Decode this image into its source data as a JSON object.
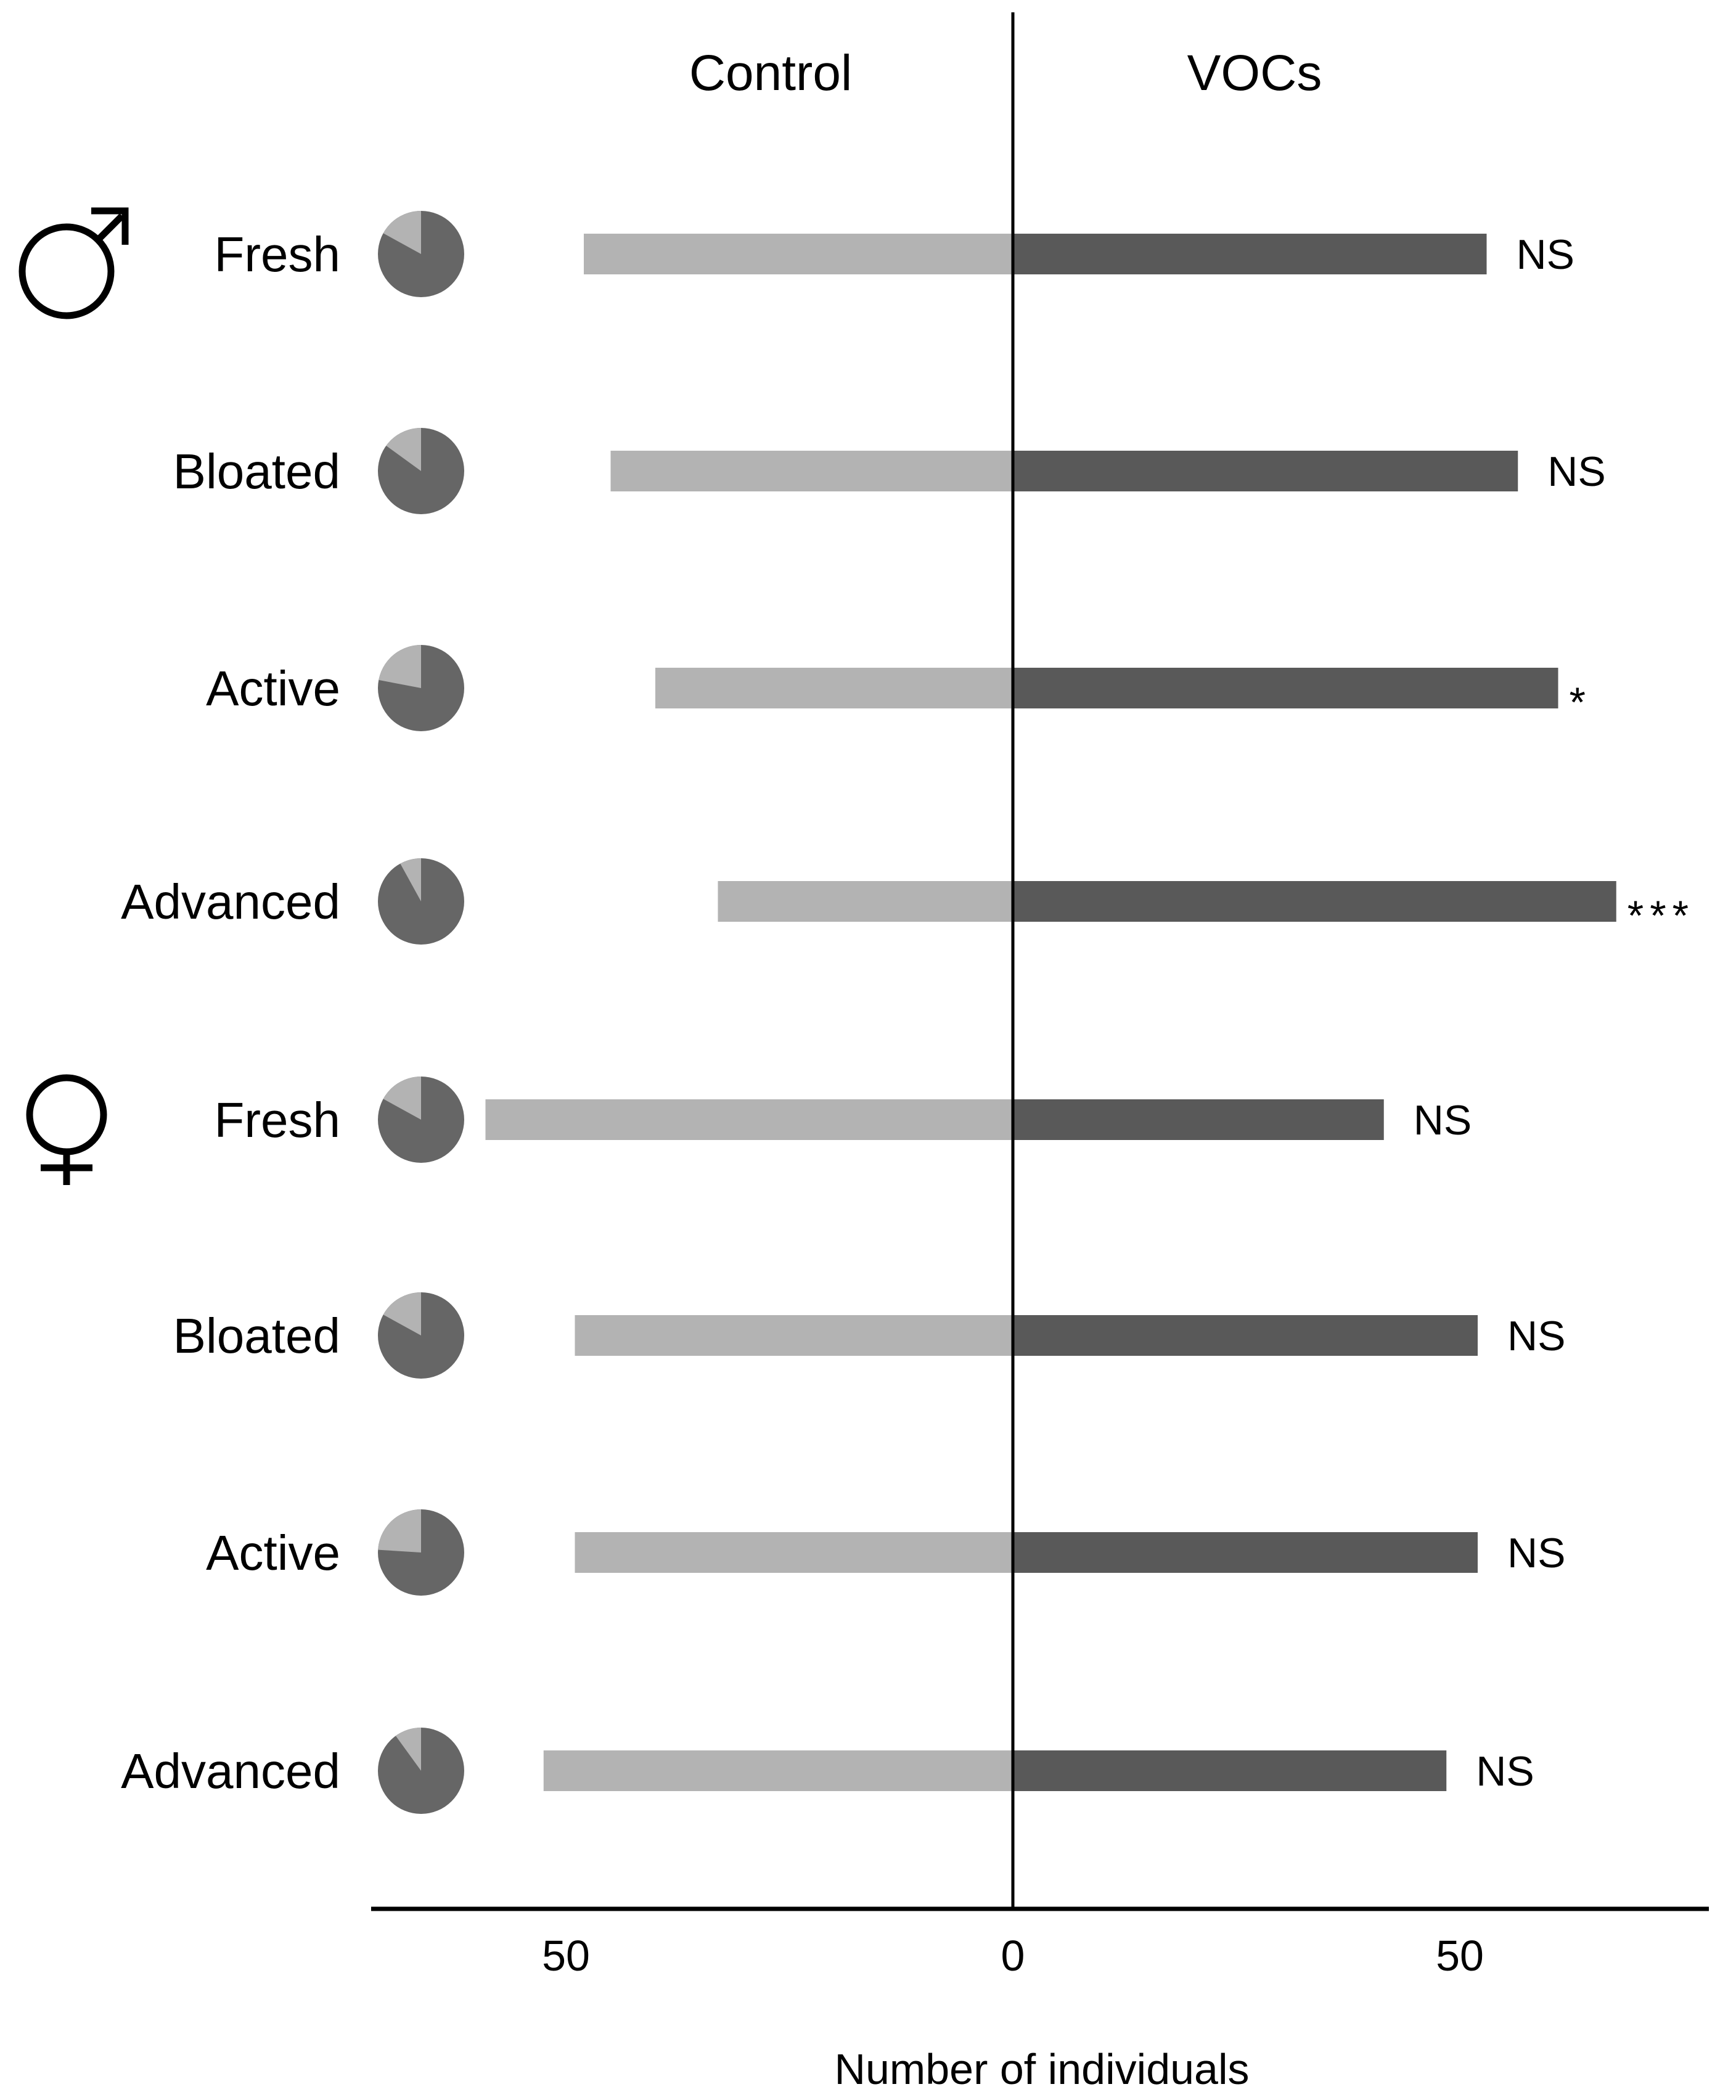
{
  "chart_data": {
    "type": "bar",
    "orientation": "horizontal-diverging",
    "column_headers": [
      "Control",
      "VOCs"
    ],
    "xlabel": "Number of individuals",
    "tick_labels": [
      "50",
      "0",
      "50"
    ],
    "tick_values": [
      -50,
      0,
      50
    ],
    "xlim": [
      -72,
      78
    ],
    "groups": [
      {
        "symbol": "♂",
        "rows": [
          {
            "label": "Fresh",
            "control": 48,
            "vocs": 53,
            "pie_control_fraction": 0.17,
            "significance": "NS"
          },
          {
            "label": "Bloated",
            "control": 45,
            "vocs": 56.5,
            "pie_control_fraction": 0.15,
            "significance": "NS"
          },
          {
            "label": "Active",
            "control": 40,
            "vocs": 61,
            "pie_control_fraction": 0.22,
            "significance": "*"
          },
          {
            "label": "Advanced",
            "control": 33,
            "vocs": 67.5,
            "pie_control_fraction": 0.08,
            "significance": "***"
          }
        ]
      },
      {
        "symbol": "♀",
        "rows": [
          {
            "label": "Fresh",
            "control": 59,
            "vocs": 41.5,
            "pie_control_fraction": 0.17,
            "significance": "NS"
          },
          {
            "label": "Bloated",
            "control": 49,
            "vocs": 52,
            "pie_control_fraction": 0.17,
            "significance": "NS"
          },
          {
            "label": "Active",
            "control": 49,
            "vocs": 52,
            "pie_control_fraction": 0.24,
            "significance": "NS"
          },
          {
            "label": "Advanced",
            "control": 52.5,
            "vocs": 48.5,
            "pie_control_fraction": 0.1,
            "significance": "NS"
          }
        ]
      }
    ],
    "colors": {
      "control": "#b3b3b3",
      "vocs": "#595959",
      "pie_control": "#b3b3b3",
      "pie_vocs": "#666666",
      "axis": "#000000"
    }
  }
}
